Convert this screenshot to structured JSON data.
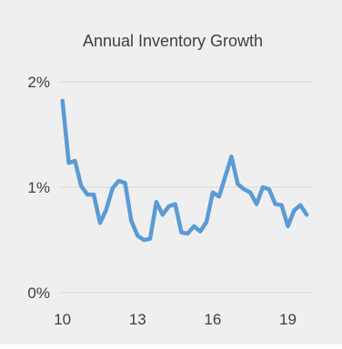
{
  "colors": {
    "panel_background": "#efefef",
    "line": "#5b9bd5",
    "gridline": "#d9d9d9",
    "text": "#404040"
  },
  "chart_data": {
    "type": "line",
    "title": "Annual Inventory Growth",
    "xlabel": "",
    "ylabel": "",
    "x_tick_labels": [
      "10",
      "13",
      "16",
      "19"
    ],
    "x_tick_values": [
      10,
      13,
      16,
      19
    ],
    "y_tick_labels": [
      "0%",
      "1%",
      "2%"
    ],
    "y_tick_values": [
      0,
      1,
      2
    ],
    "xlim": [
      9.83,
      20.0
    ],
    "ylim": [
      0,
      2
    ],
    "grid": "horizontal",
    "legend": "none",
    "series": [
      {
        "x": [
          10.0,
          10.25,
          10.5,
          10.75,
          11.0,
          11.25,
          11.5,
          11.75,
          12.0,
          12.25,
          12.5,
          12.75,
          13.0,
          13.25,
          13.5,
          13.75,
          14.0,
          14.25,
          14.5,
          14.75,
          15.0,
          15.25,
          15.5,
          15.75,
          16.0,
          16.25,
          16.5,
          16.75,
          17.0,
          17.25,
          17.5,
          17.75,
          18.0,
          18.25,
          18.5,
          18.75,
          19.0,
          19.25,
          19.5,
          19.75
        ],
        "values": [
          1.82,
          1.23,
          1.25,
          1.01,
          0.93,
          0.93,
          0.66,
          0.79,
          0.99,
          1.06,
          1.04,
          0.68,
          0.54,
          0.5,
          0.51,
          0.86,
          0.74,
          0.82,
          0.84,
          0.57,
          0.56,
          0.63,
          0.58,
          0.67,
          0.95,
          0.91,
          1.1,
          1.29,
          1.03,
          0.98,
          0.95,
          0.84,
          1.0,
          0.98,
          0.84,
          0.83,
          0.63,
          0.78,
          0.83,
          0.74
        ]
      }
    ]
  }
}
